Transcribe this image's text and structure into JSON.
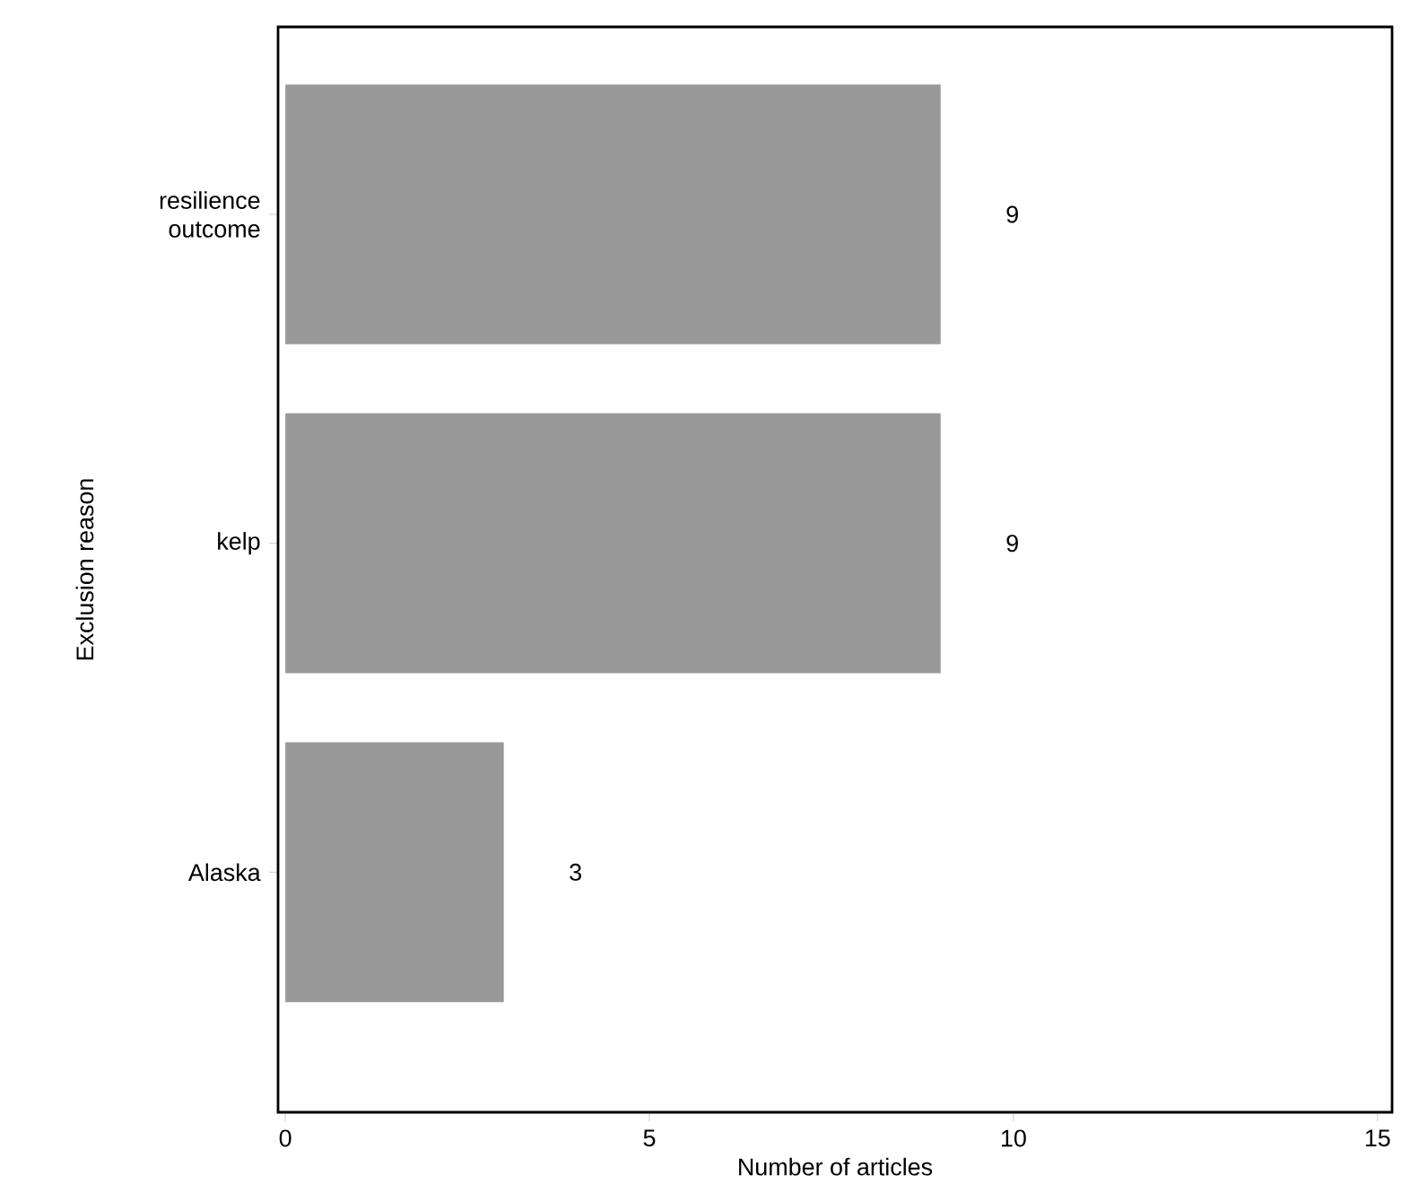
{
  "chart_data": {
    "type": "bar",
    "orientation": "horizontal",
    "xlabel": "Number of articles",
    "ylabel": "Exclusion reason",
    "categories": [
      "resilience outcome",
      "kelp",
      "Alaska"
    ],
    "values": [
      9,
      9,
      3
    ],
    "color": "#999999",
    "xlim": [
      -0.1,
      15.2
    ],
    "xticks": [
      0,
      5,
      10,
      15
    ],
    "data_labels": true,
    "grid": false
  }
}
